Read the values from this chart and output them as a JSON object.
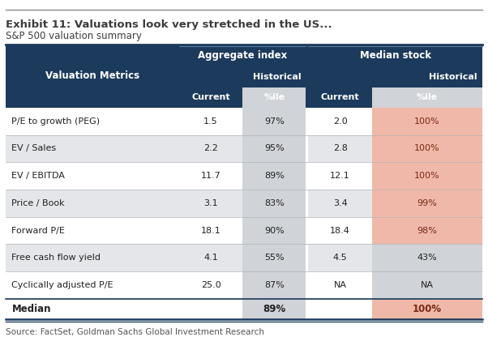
{
  "title": "Exhibit 11: Valuations look very stretched in the US...",
  "subtitle": "S&P 500 valuation summary",
  "source": "Source: FactSet, Goldman Sachs Global Investment Research",
  "header_bg": "#1c3a5c",
  "header_text": "#ffffff",
  "col_header1": "Aggregate index",
  "col_header2": "Median stock",
  "row_label": "Valuation Metrics",
  "rows": [
    [
      "P/E to growth (PEG)",
      "1.5",
      "97%",
      "2.0",
      "100%"
    ],
    [
      "EV / Sales",
      "2.2",
      "95%",
      "2.8",
      "100%"
    ],
    [
      "EV / EBITDA",
      "11.7",
      "89%",
      "12.1",
      "100%"
    ],
    [
      "Price / Book",
      "3.1",
      "83%",
      "3.4",
      "99%"
    ],
    [
      "Forward P/E",
      "18.1",
      "90%",
      "18.4",
      "98%"
    ],
    [
      "Free cash flow yield",
      "4.1",
      "55%",
      "4.5",
      "43%"
    ],
    [
      "Cyclically adjusted P/E",
      "25.0",
      "87%",
      "NA",
      "NA"
    ]
  ],
  "median_row": [
    "Median",
    "",
    "89%",
    "",
    "100%"
  ],
  "highlighted_rows": [
    0,
    1,
    2,
    3,
    4
  ],
  "highlight_color": "#f0b8a8",
  "alt_row_color": "#e4e6e9",
  "white_row_color": "#ffffff",
  "gray_col_color": "#d0d3d8",
  "dark_line_color": "#1c3a5c",
  "top_border_color": "#8a8a8a",
  "title_color": "#3d3d3d",
  "source_color": "#555555"
}
